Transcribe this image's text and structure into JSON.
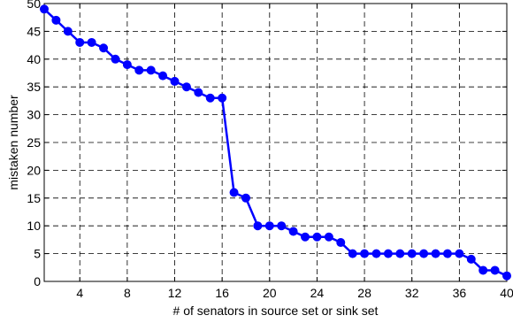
{
  "chart_data": {
    "type": "line",
    "xlabel": "# of senators in source set or sink set",
    "ylabel": "mistaken number",
    "xlim": [
      1,
      40
    ],
    "ylim": [
      0,
      50
    ],
    "xticks": [
      4,
      8,
      12,
      16,
      20,
      24,
      28,
      32,
      36,
      40
    ],
    "yticks": [
      0,
      5,
      10,
      15,
      20,
      25,
      30,
      35,
      40,
      45,
      50
    ],
    "grid": true,
    "grid_style": "dashed",
    "series_color": "#0000ff",
    "series": [
      {
        "x": [
          1,
          2,
          3,
          4,
          5,
          6,
          7,
          8,
          9,
          10,
          11,
          12,
          13,
          14,
          15,
          16,
          17,
          18,
          19,
          20,
          21,
          22,
          23,
          24,
          25,
          26,
          27,
          28,
          29,
          30,
          31,
          32,
          33,
          34,
          35,
          36,
          37,
          38,
          39,
          40
        ],
        "values": [
          49,
          47,
          45,
          43,
          43,
          42,
          40,
          39,
          38,
          38,
          37,
          36,
          35,
          34,
          33,
          33,
          16,
          15,
          10,
          10,
          10,
          9,
          8,
          8,
          8,
          7,
          5,
          5,
          5,
          5,
          5,
          5,
          5,
          5,
          5,
          5,
          4,
          2,
          2,
          1
        ],
        "marker": "circle"
      }
    ]
  }
}
